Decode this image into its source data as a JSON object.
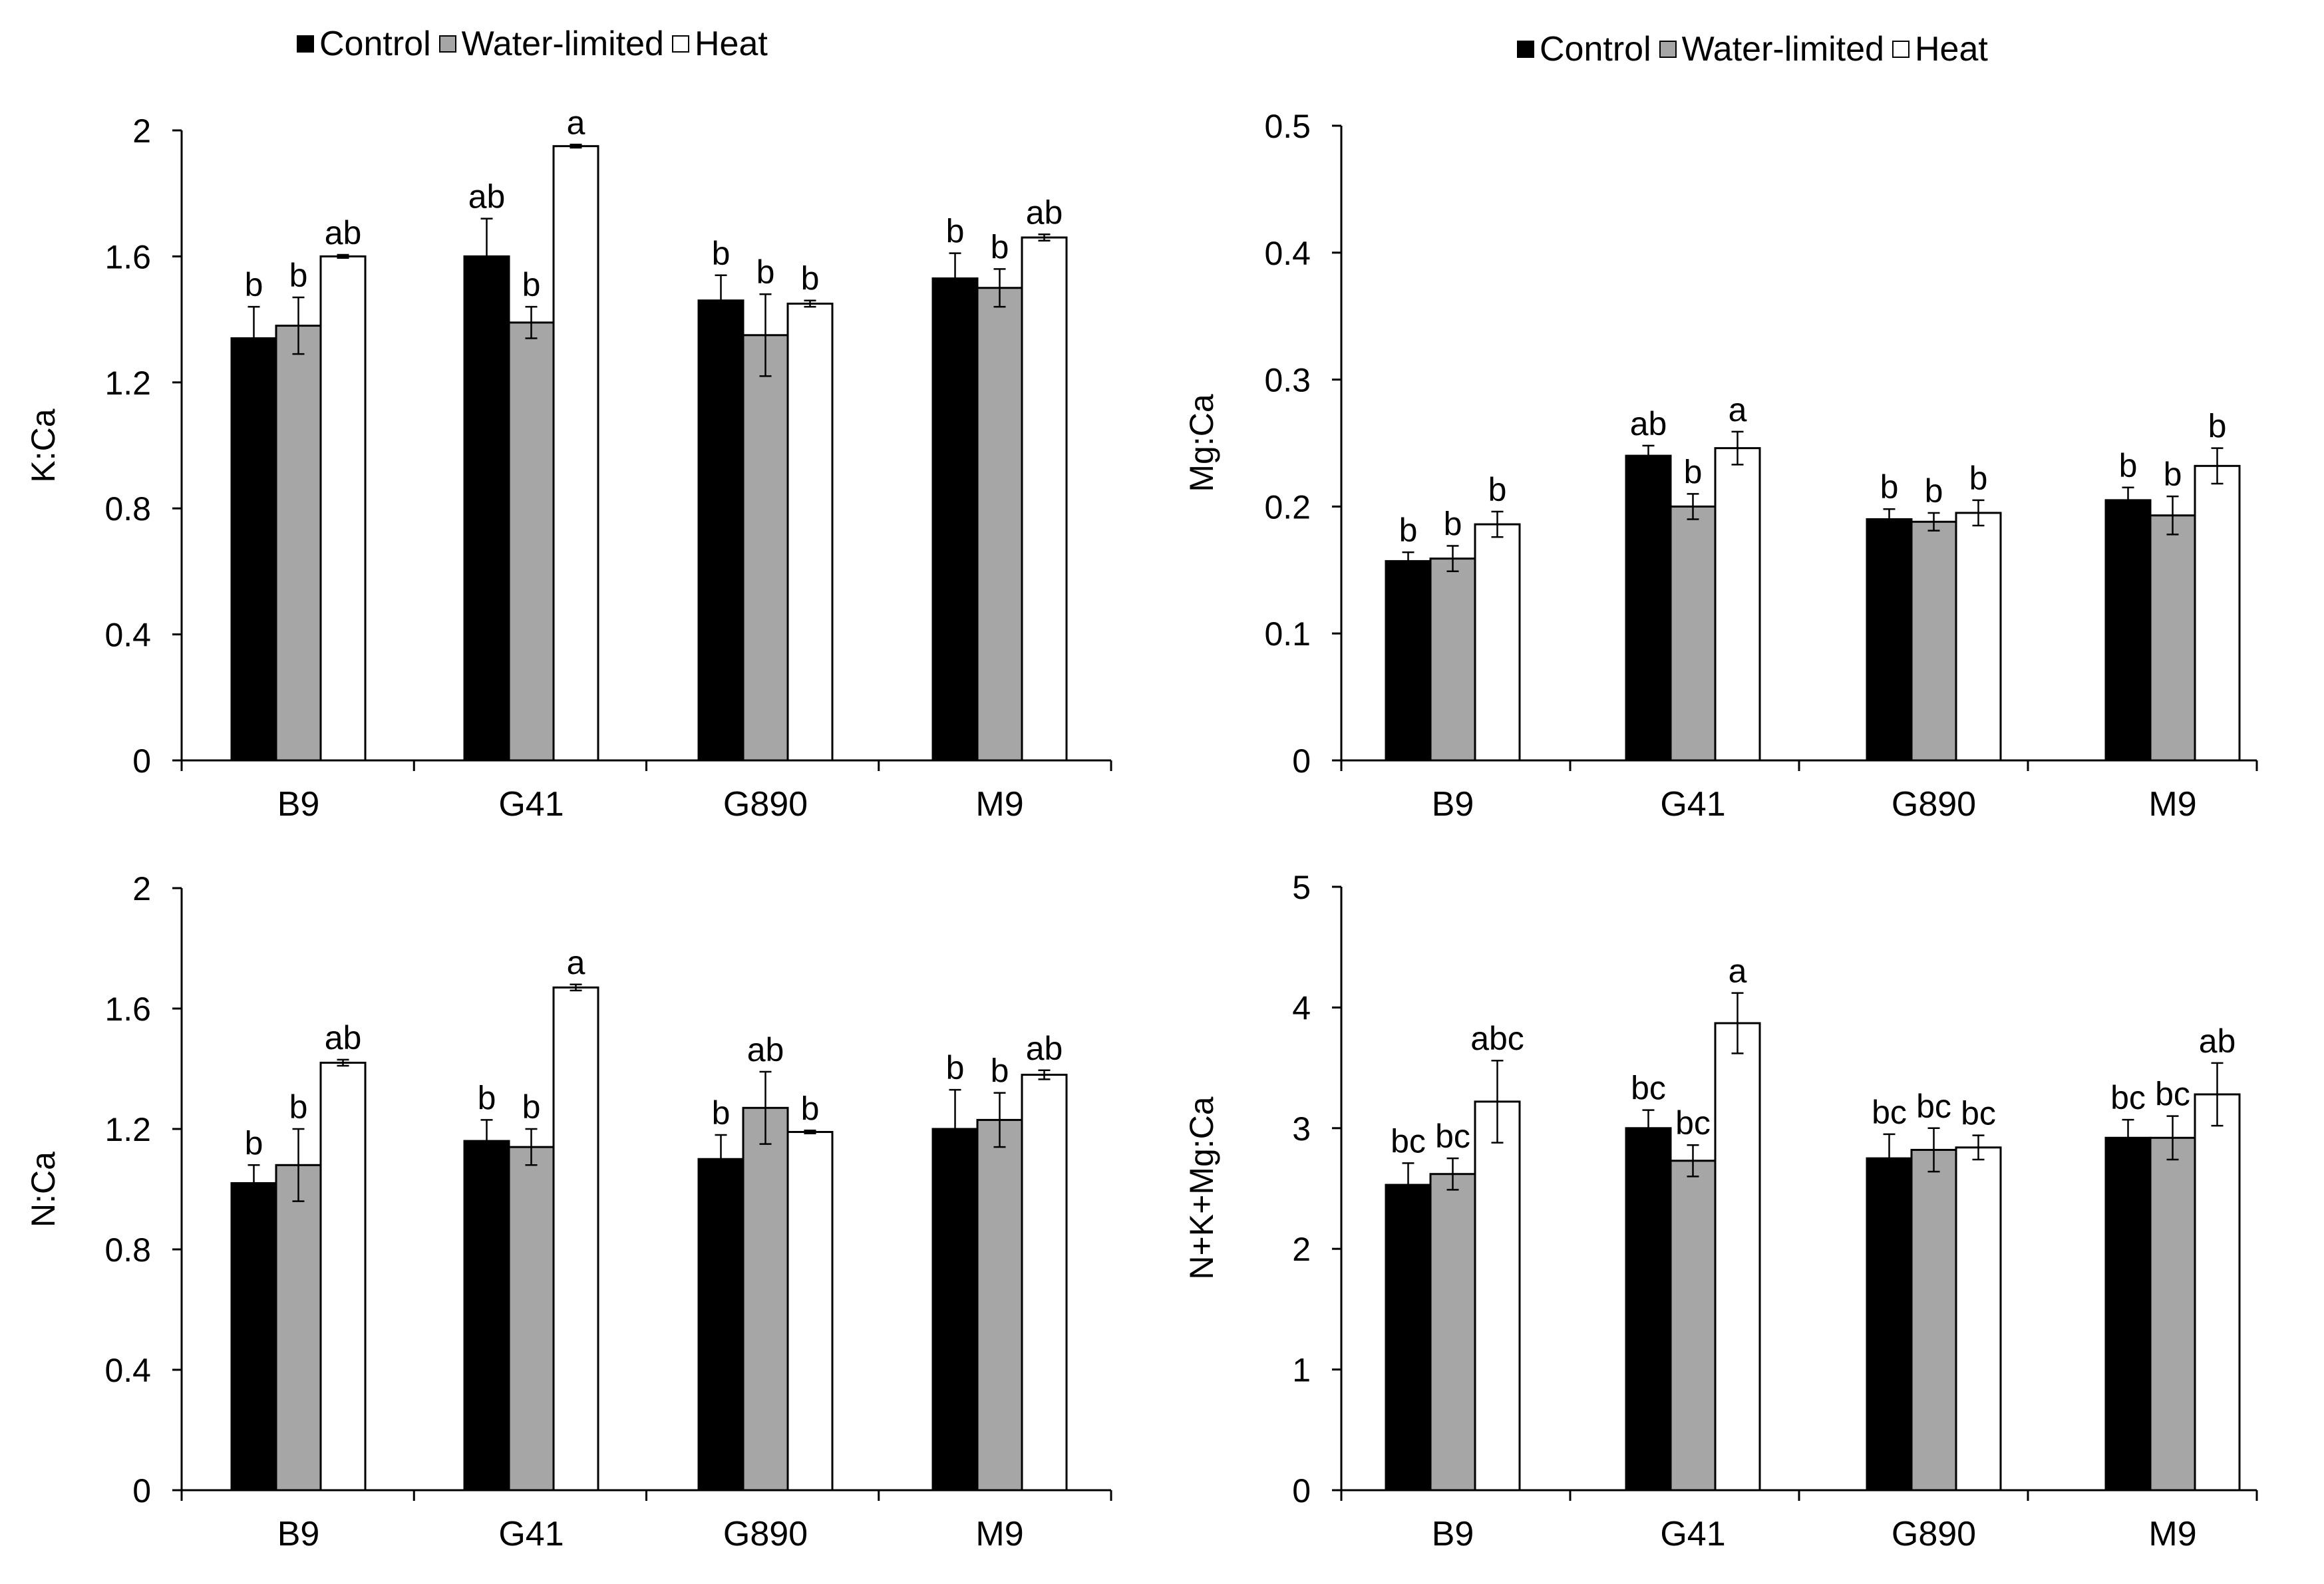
{
  "legend": {
    "items": [
      {
        "label": "Control",
        "color": "#000000"
      },
      {
        "label": "Water-limited",
        "color": "#a6a6a6"
      },
      {
        "label": "Heat",
        "color": "#ffffff"
      }
    ]
  },
  "chart_data": [
    {
      "id": "kca",
      "type": "bar",
      "title": "",
      "xlabel": "",
      "ylabel": "K:Ca",
      "ylim": [
        0,
        2
      ],
      "yticks": [
        "0",
        "0.4",
        "0.8",
        "1.2",
        "1.6",
        "2"
      ],
      "categories": [
        "B9",
        "G41",
        "G890",
        "M9"
      ],
      "series": [
        {
          "name": "Control",
          "color": "#000000",
          "values": [
            1.34,
            1.6,
            1.46,
            1.53
          ],
          "errors": [
            0.1,
            0.12,
            0.08,
            0.08
          ],
          "letters": [
            "b",
            "ab",
            "b",
            "b"
          ]
        },
        {
          "name": "Water-limited",
          "color": "#a6a6a6",
          "values": [
            1.38,
            1.39,
            1.35,
            1.5
          ],
          "errors": [
            0.09,
            0.05,
            0.13,
            0.06
          ],
          "letters": [
            "b",
            "b",
            "b",
            "b"
          ]
        },
        {
          "name": "Heat",
          "color": "#ffffff",
          "values": [
            1.6,
            1.95,
            1.45,
            1.66
          ],
          "errors": [
            0.005,
            0.005,
            0.01,
            0.01
          ],
          "letters": [
            "ab",
            "a",
            "b",
            "ab"
          ]
        }
      ]
    },
    {
      "id": "mgca",
      "type": "bar",
      "title": "",
      "xlabel": "",
      "ylabel": "Mg:Ca",
      "ylim": [
        0,
        0.5
      ],
      "yticks": [
        "0",
        "0.1",
        "0.2",
        "0.3",
        "0.4",
        "0.5"
      ],
      "categories": [
        "B9",
        "G41",
        "G890",
        "M9"
      ],
      "series": [
        {
          "name": "Control",
          "color": "#000000",
          "values": [
            0.157,
            0.24,
            0.19,
            0.205
          ],
          "errors": [
            0.007,
            0.008,
            0.008,
            0.01
          ],
          "letters": [
            "b",
            "ab",
            "b",
            "b"
          ]
        },
        {
          "name": "Water-limited",
          "color": "#a6a6a6",
          "values": [
            0.159,
            0.2,
            0.188,
            0.193
          ],
          "errors": [
            0.01,
            0.01,
            0.007,
            0.015
          ],
          "letters": [
            "b",
            "b",
            "b",
            "b"
          ]
        },
        {
          "name": "Heat",
          "color": "#ffffff",
          "values": [
            0.186,
            0.246,
            0.195,
            0.232
          ],
          "errors": [
            0.01,
            0.013,
            0.01,
            0.014
          ],
          "letters": [
            "b",
            "a",
            "b",
            "b"
          ]
        }
      ]
    },
    {
      "id": "nca",
      "type": "bar",
      "title": "",
      "xlabel": "",
      "ylabel": "N:Ca",
      "ylim": [
        0,
        2
      ],
      "yticks": [
        "0",
        "0.4",
        "0.8",
        "1.2",
        "1.6",
        "2"
      ],
      "categories": [
        "B9",
        "G41",
        "G890",
        "M9"
      ],
      "series": [
        {
          "name": "Control",
          "color": "#000000",
          "values": [
            1.02,
            1.16,
            1.1,
            1.2
          ],
          "errors": [
            0.06,
            0.07,
            0.08,
            0.13
          ],
          "letters": [
            "b",
            "b",
            "b",
            "b"
          ]
        },
        {
          "name": "Water-limited",
          "color": "#a6a6a6",
          "values": [
            1.08,
            1.14,
            1.27,
            1.23
          ],
          "errors": [
            0.12,
            0.06,
            0.12,
            0.09
          ],
          "letters": [
            "b",
            "b",
            "ab",
            "b"
          ]
        },
        {
          "name": "Heat",
          "color": "#ffffff",
          "values": [
            1.42,
            1.67,
            1.19,
            1.38
          ],
          "errors": [
            0.01,
            0.01,
            0.005,
            0.015
          ],
          "letters": [
            "ab",
            "a",
            "b",
            "ab"
          ]
        }
      ]
    },
    {
      "id": "nkmgca",
      "type": "bar",
      "title": "",
      "xlabel": "",
      "ylabel": "N+K+Mg:Ca",
      "ylim": [
        0,
        5
      ],
      "yticks": [
        "0",
        "1",
        "2",
        "3",
        "4",
        "5"
      ],
      "categories": [
        "B9",
        "G41",
        "G890",
        "M9"
      ],
      "series": [
        {
          "name": "Control",
          "color": "#000000",
          "values": [
            2.53,
            3.0,
            2.75,
            2.92
          ],
          "errors": [
            0.18,
            0.15,
            0.2,
            0.15
          ],
          "letters": [
            "bc",
            "bc",
            "bc",
            "bc"
          ]
        },
        {
          "name": "Water-limited",
          "color": "#a6a6a6",
          "values": [
            2.62,
            2.73,
            2.82,
            2.92
          ],
          "errors": [
            0.13,
            0.13,
            0.18,
            0.18
          ],
          "letters": [
            "bc",
            "bc",
            "bc",
            "bc"
          ]
        },
        {
          "name": "Heat",
          "color": "#ffffff",
          "values": [
            3.22,
            3.87,
            2.84,
            3.28
          ],
          "errors": [
            0.34,
            0.25,
            0.1,
            0.26
          ],
          "letters": [
            "abc",
            "a",
            "bc",
            "ab"
          ]
        }
      ]
    }
  ]
}
